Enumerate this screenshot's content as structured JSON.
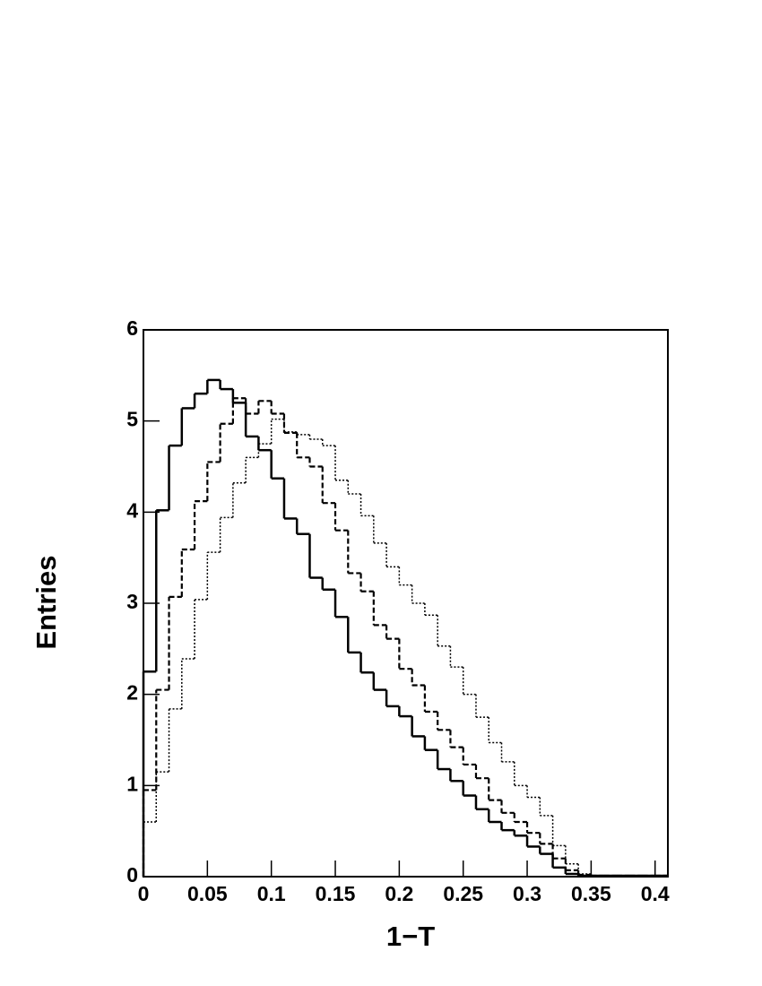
{
  "chart_data": {
    "type": "histogram",
    "x_label": "1−T",
    "y_label": "Entries",
    "xlim": [
      0,
      0.41
    ],
    "ylim": [
      0,
      6
    ],
    "xticks": [
      0,
      0.05,
      0.1,
      0.15,
      0.2,
      0.25,
      0.3,
      0.35,
      0.4
    ],
    "yticks": [
      0,
      1,
      2,
      3,
      4,
      5,
      6
    ],
    "bins": [
      0,
      0.01,
      0.02,
      0.03,
      0.04,
      0.05,
      0.06,
      0.07,
      0.08,
      0.09,
      0.1,
      0.11,
      0.12,
      0.13,
      0.14,
      0.15,
      0.16,
      0.17,
      0.18,
      0.19,
      0.2,
      0.21,
      0.22,
      0.23,
      0.24,
      0.25,
      0.26,
      0.27,
      0.28,
      0.29,
      0.3,
      0.31,
      0.32,
      0.33,
      0.34,
      0.35,
      0.36,
      0.37,
      0.38,
      0.39,
      0.4,
      0.41
    ],
    "series": [
      {
        "color": "#000000",
        "style": "solid",
        "values": [
          2.25,
          4.02,
          4.73,
          5.14,
          5.3,
          5.45,
          5.35,
          5.2,
          4.83,
          4.68,
          4.37,
          3.93,
          3.76,
          3.28,
          3.15,
          2.85,
          2.46,
          2.24,
          2.05,
          1.87,
          1.76,
          1.54,
          1.39,
          1.18,
          1.05,
          0.89,
          0.74,
          0.6,
          0.51,
          0.45,
          0.33,
          0.25,
          0.1,
          0.03,
          0.01,
          0.01,
          0.01,
          0.01,
          0.01,
          0.01,
          0.01
        ]
      },
      {
        "color": "#000000",
        "style": "dashed",
        "values": [
          0.95,
          2.05,
          3.07,
          3.59,
          4.12,
          4.55,
          4.97,
          5.25,
          5.08,
          5.22,
          5.08,
          4.87,
          4.6,
          4.5,
          4.1,
          3.8,
          3.33,
          3.13,
          2.76,
          2.61,
          2.28,
          2.1,
          1.81,
          1.61,
          1.42,
          1.23,
          1.08,
          0.84,
          0.7,
          0.6,
          0.48,
          0.36,
          0.2,
          0.07,
          0.02,
          0.01,
          0.01,
          0.01,
          0.01,
          0.01,
          0.01
        ]
      },
      {
        "color": "#000000",
        "style": "dotted",
        "values": [
          0.6,
          1.15,
          1.84,
          2.39,
          3.04,
          3.56,
          3.94,
          4.32,
          4.6,
          4.75,
          5.02,
          4.88,
          4.85,
          4.8,
          4.73,
          4.35,
          4.2,
          3.96,
          3.66,
          3.4,
          3.2,
          3.0,
          2.87,
          2.53,
          2.3,
          2.0,
          1.75,
          1.47,
          1.26,
          1.0,
          0.87,
          0.67,
          0.34,
          0.14,
          0.03,
          0.01,
          0.01,
          0.01,
          0.01,
          0.01,
          0.01
        ]
      }
    ]
  }
}
